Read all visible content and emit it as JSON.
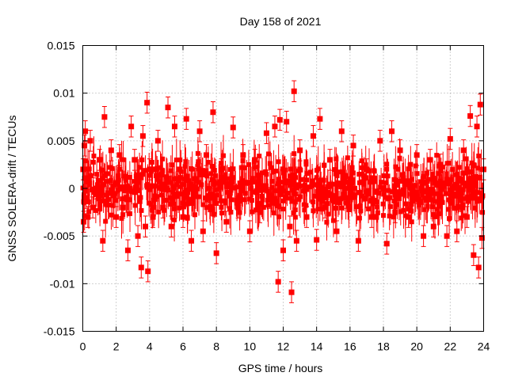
{
  "chart_data": {
    "type": "scatter",
    "title": "Day 158 of 2021",
    "xlabel": "GPS time / hours",
    "ylabel": "GNSS SOLERA-drift / TECUs",
    "xlim": [
      0,
      24
    ],
    "ylim": [
      -0.015,
      0.015
    ],
    "xticks": [
      "0",
      "2",
      "4",
      "6",
      "8",
      "10",
      "12",
      "14",
      "16",
      "18",
      "20",
      "22",
      "24"
    ],
    "yticks": [
      "-0.015",
      "-0.01",
      "-0.005",
      "0",
      "0.005",
      "0.01",
      "0.015"
    ],
    "grid": true,
    "error_bars": true,
    "marker": "filled-square",
    "series": [
      {
        "color": "#ff0000",
        "x": [
          0.02,
          0.05,
          0.1,
          0.15,
          0.2,
          0.25,
          0.3,
          0.45,
          0.6,
          0.8,
          1.0,
          1.2,
          1.3,
          1.5,
          1.7,
          2.0,
          2.2,
          2.4,
          2.7,
          2.9,
          3.1,
          3.3,
          3.5,
          3.6,
          3.75,
          3.85,
          3.9,
          4.0,
          4.2,
          4.5,
          4.8,
          5.1,
          5.3,
          5.5,
          5.8,
          6.0,
          6.2,
          6.5,
          6.7,
          7.0,
          7.2,
          7.4,
          7.6,
          7.8,
          8.0,
          8.3,
          8.6,
          9.0,
          9.3,
          9.6,
          10.0,
          10.3,
          10.6,
          11.0,
          11.2,
          11.5,
          11.7,
          11.8,
          12.0,
          12.2,
          12.4,
          12.5,
          12.65,
          12.8,
          13.0,
          13.4,
          13.8,
          14.0,
          14.2,
          14.5,
          14.8,
          15.2,
          15.5,
          15.8,
          16.2,
          16.5,
          17.0,
          17.3,
          17.8,
          18.2,
          18.5,
          18.7,
          19.0,
          19.5,
          20.0,
          20.4,
          20.8,
          21.0,
          21.4,
          21.8,
          22.0,
          22.4,
          22.8,
          23.0,
          23.2,
          23.4,
          23.6,
          23.7,
          23.8,
          23.9,
          24.0
        ],
        "y": [
          0.002,
          -0.0035,
          0.0045,
          0.006,
          -0.001,
          0.001,
          -0.003,
          0.005,
          -0.002,
          0.0,
          0.003,
          -0.0055,
          0.0075,
          -0.0005,
          0.004,
          -0.003,
          0.0035,
          -0.002,
          -0.0065,
          0.0065,
          0.003,
          -0.005,
          -0.0083,
          0.0055,
          -0.004,
          0.009,
          -0.0087,
          0.002,
          -0.003,
          0.005,
          -0.002,
          0.0085,
          -0.004,
          0.0065,
          0.002,
          -0.003,
          0.0073,
          -0.0055,
          0.001,
          0.006,
          -0.0045,
          0.0035,
          -0.001,
          0.008,
          -0.0068,
          0.002,
          -0.0035,
          0.0064,
          -0.002,
          0.0035,
          -0.0045,
          0.003,
          -0.0025,
          0.0058,
          -0.001,
          0.0065,
          -0.0098,
          0.0072,
          -0.0065,
          0.007,
          -0.004,
          -0.0109,
          0.0102,
          -0.0055,
          0.004,
          -0.003,
          0.0055,
          -0.0054,
          0.0073,
          -0.002,
          0.003,
          -0.0045,
          0.006,
          -0.001,
          0.0045,
          -0.0055,
          0.002,
          -0.003,
          0.005,
          -0.0058,
          0.006,
          -0.0025,
          0.004,
          -0.003,
          0.0035,
          -0.005,
          0.003,
          -0.004,
          0.0025,
          -0.005,
          0.0052,
          -0.0045,
          0.004,
          -0.003,
          0.0076,
          -0.007,
          0.0065,
          -0.0083,
          0.0088,
          -0.0052,
          0.002
        ]
      }
    ]
  }
}
